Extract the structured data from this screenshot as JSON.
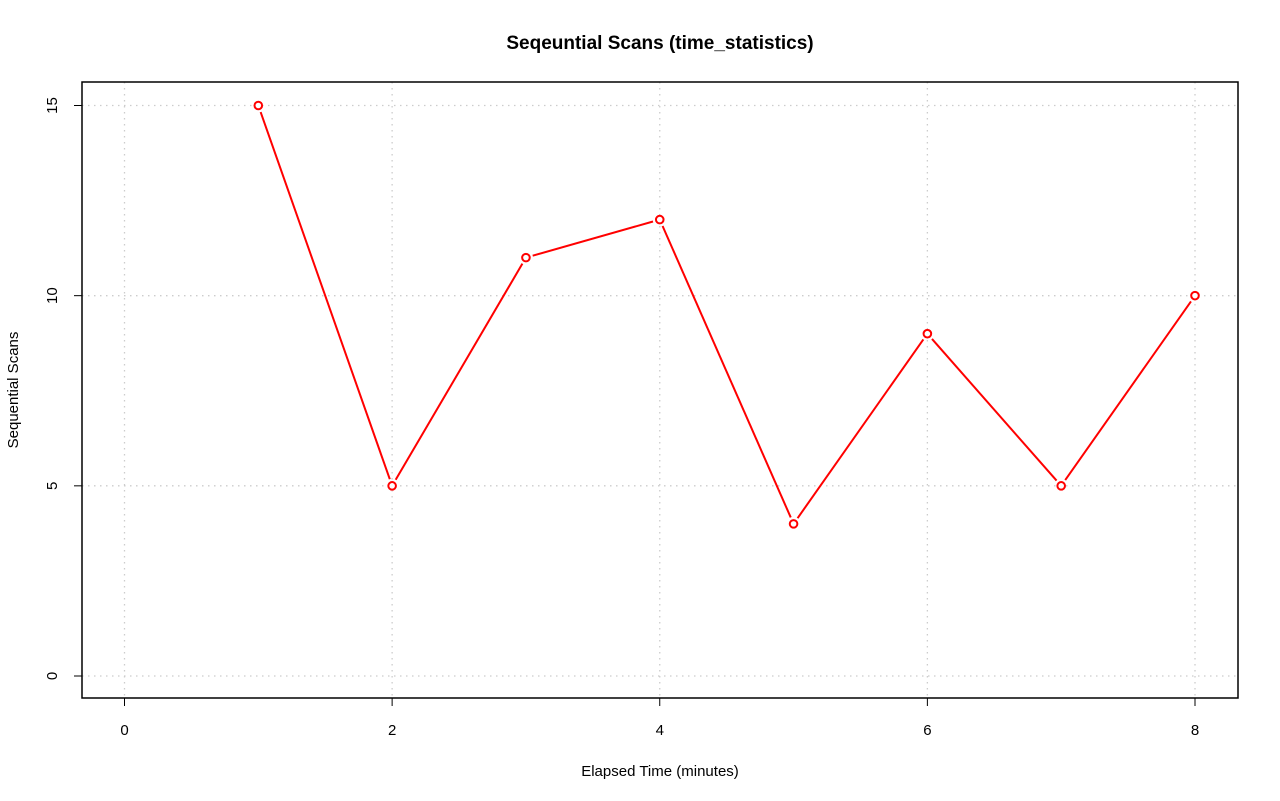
{
  "chart_data": {
    "type": "line",
    "title": "Seqeuntial Scans (time_statistics)",
    "xlabel": "Elapsed Time (minutes)",
    "ylabel": "Sequential Scans",
    "xlim": [
      0,
      8
    ],
    "ylim": [
      0,
      15
    ],
    "x_ticks": [
      0,
      2,
      4,
      6,
      8
    ],
    "y_ticks": [
      0,
      5,
      10,
      15
    ],
    "grid": true,
    "series": [
      {
        "x": [
          1,
          2,
          3,
          4,
          5,
          6,
          7,
          8
        ],
        "values": [
          15,
          5,
          11,
          12,
          4,
          9,
          5,
          10
        ],
        "color": "#ff0000"
      }
    ]
  },
  "colors": {
    "grid": "#cccccc",
    "frame": "#000000",
    "series": "#ff0000"
  }
}
